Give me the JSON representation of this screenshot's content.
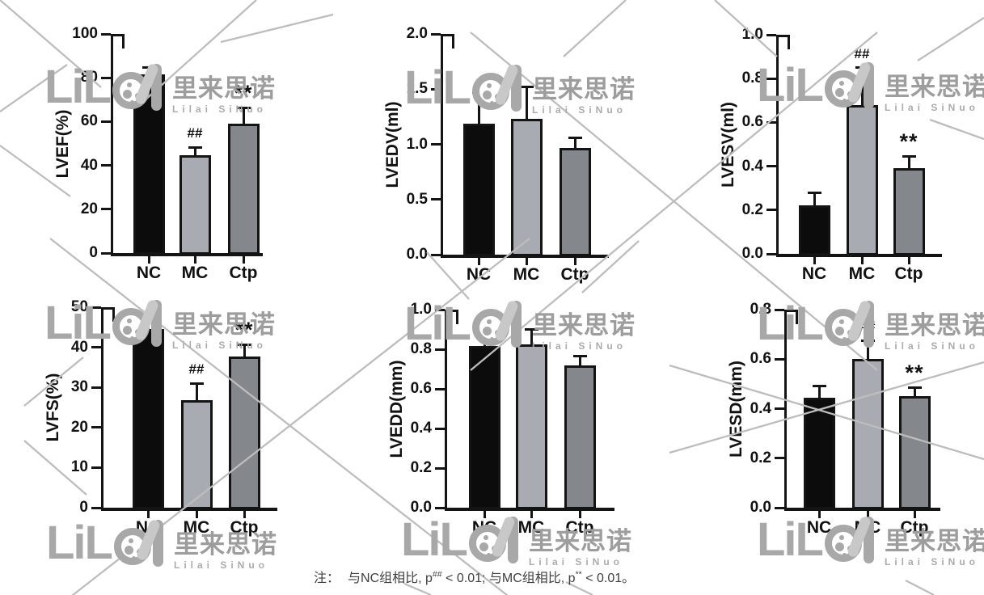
{
  "page": {
    "background": "#ffffff"
  },
  "watermark": {
    "logo_text": "LiL",
    "brand_cn": "里来思诺",
    "brand_en": "Lilai SiNuo",
    "color": "#a8a8a8"
  },
  "note": {
    "prefix": "注：",
    "seg1": "与NC组相比, p",
    "sup1": "##",
    "seg2": " < 0.01; 与MC组相比, p",
    "sup2": "**",
    "seg3": " < 0.01。"
  },
  "bar_colors": {
    "NC": "#0c0c0c",
    "MC": "#a8acb2",
    "Ctp": "#84878c"
  },
  "chart_data": [
    {
      "id": "lvef",
      "type": "bar",
      "title": "",
      "xlabel": "",
      "ylabel": "LVEF(%)",
      "categories": [
        "NC",
        "MC",
        "Ctp"
      ],
      "values": [
        81.5,
        44.5,
        59
      ],
      "errors": [
        3.2,
        3.7,
        7.4
      ],
      "ylim": [
        0,
        100
      ],
      "ytick_labels": [
        "0",
        "20",
        "40",
        "60",
        "80",
        "100"
      ],
      "annotations": [
        "",
        "##",
        "**"
      ],
      "grid": false,
      "legend": false
    },
    {
      "id": "lvedv",
      "type": "bar",
      "title": "",
      "xlabel": "",
      "ylabel": "LVEDV(ml)",
      "categories": [
        "NC",
        "MC",
        "Ctp"
      ],
      "values": [
        1.19,
        1.23,
        0.97
      ],
      "errors": [
        0.28,
        0.29,
        0.09
      ],
      "ylim": [
        0,
        2
      ],
      "ytick_labels": [
        "0.0",
        "0.5",
        "1.0",
        "1.5",
        "2.0"
      ],
      "annotations": [
        "",
        "",
        ""
      ],
      "grid": false,
      "legend": false
    },
    {
      "id": "lvesv",
      "type": "bar",
      "title": "",
      "xlabel": "",
      "ylabel": "LVESV(ml)",
      "categories": [
        "NC",
        "MC",
        "Ctp"
      ],
      "values": [
        0.22,
        0.68,
        0.39
      ],
      "errors": [
        0.06,
        0.17,
        0.055
      ],
      "ylim": [
        0,
        1
      ],
      "ytick_labels": [
        "0.0",
        "0.2",
        "0.4",
        "0.6",
        "0.8",
        "1.0"
      ],
      "annotations": [
        "",
        "##",
        "**"
      ],
      "grid": false,
      "legend": false
    },
    {
      "id": "lvfs",
      "type": "bar",
      "title": "",
      "xlabel": "",
      "ylabel": "LVFS(%)",
      "categories": [
        "NC",
        "MC",
        "Ctp"
      ],
      "values": [
        44.5,
        26.8,
        37.7
      ],
      "errors": [
        2.8,
        4.2,
        3.0
      ],
      "ylim": [
        0,
        50
      ],
      "ytick_labels": [
        "0",
        "10",
        "20",
        "30",
        "40",
        "50"
      ],
      "annotations": [
        "",
        "##",
        "**"
      ],
      "grid": false,
      "legend": false
    },
    {
      "id": "lvedd",
      "type": "bar",
      "title": "",
      "xlabel": "",
      "ylabel": "LVEDD(mm)",
      "categories": [
        "NC",
        "MC",
        "Ctp"
      ],
      "values": [
        0.815,
        0.825,
        0.72
      ],
      "errors": [
        0.075,
        0.075,
        0.045
      ],
      "ylim": [
        0,
        1
      ],
      "ytick_labels": [
        "0.0",
        "0.2",
        "0.4",
        "0.6",
        "0.8",
        "1.0"
      ],
      "annotations": [
        "",
        "",
        ""
      ],
      "grid": false,
      "legend": false
    },
    {
      "id": "lvesd",
      "type": "bar",
      "title": "",
      "xlabel": "",
      "ylabel": "LVESD(mm)",
      "categories": [
        "NC",
        "MC",
        "Ctp"
      ],
      "values": [
        0.445,
        0.6,
        0.45
      ],
      "errors": [
        0.045,
        0.075,
        0.035
      ],
      "ylim": [
        0,
        0.8
      ],
      "ytick_labels": [
        "0.0",
        "0.2",
        "0.4",
        "0.6",
        "0.8"
      ],
      "annotations": [
        "",
        "##",
        "**"
      ],
      "grid": false,
      "legend": false
    }
  ]
}
